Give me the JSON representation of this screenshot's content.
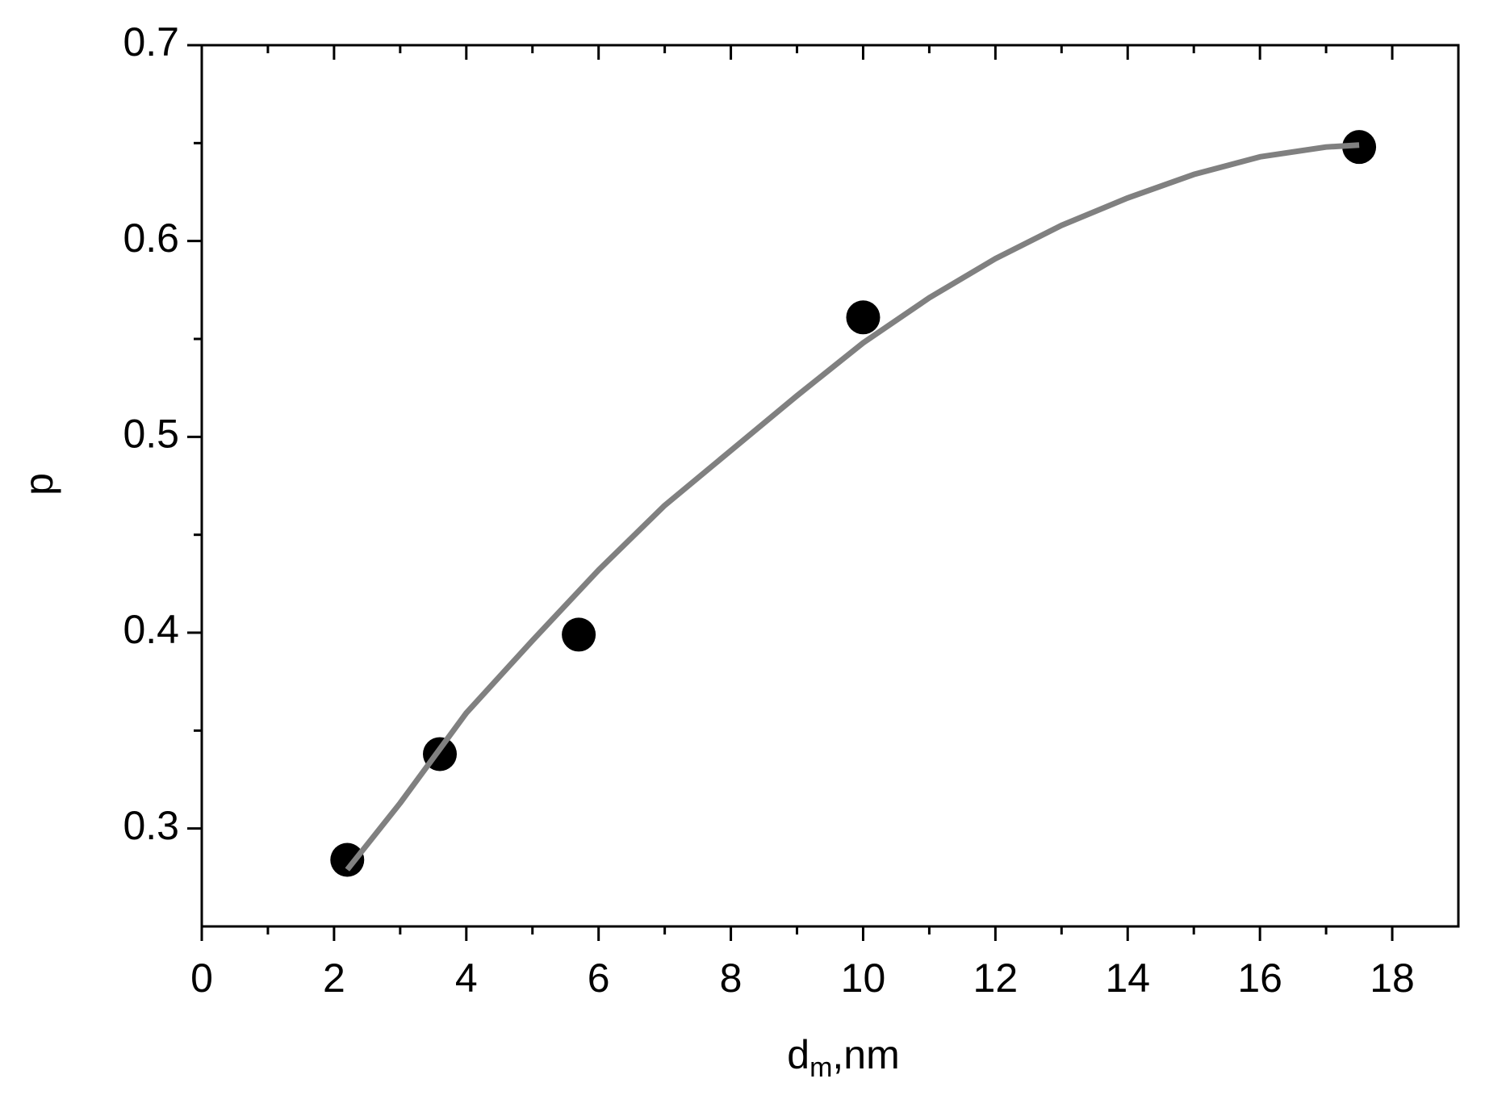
{
  "chart_data": {
    "type": "scatter",
    "x_label": [
      "d",
      "m",
      ",nm"
    ],
    "y_label": "p",
    "xlim": [
      0,
      19
    ],
    "xticks": [
      0,
      2,
      4,
      6,
      8,
      10,
      12,
      14,
      16,
      18
    ],
    "ylim": [
      0.25,
      0.7
    ],
    "yticks": [
      0.3,
      0.4,
      0.5,
      0.6,
      0.7
    ],
    "series": [
      {
        "kind": "points",
        "color": "#000000",
        "x": [
          2.2,
          3.6,
          5.7,
          10.0,
          17.5
        ],
        "values": [
          0.284,
          0.338,
          0.399,
          0.561,
          0.648
        ]
      },
      {
        "kind": "line",
        "color": "#808080",
        "x": [
          2.2,
          3,
          4,
          5,
          6,
          7,
          8,
          9,
          10,
          11,
          12,
          13,
          14,
          15,
          16,
          17,
          17.5
        ],
        "values": [
          0.279,
          0.313,
          0.359,
          0.396,
          0.432,
          0.465,
          0.493,
          0.521,
          0.548,
          0.571,
          0.591,
          0.608,
          0.622,
          0.634,
          0.643,
          0.648,
          0.649
        ]
      }
    ]
  }
}
